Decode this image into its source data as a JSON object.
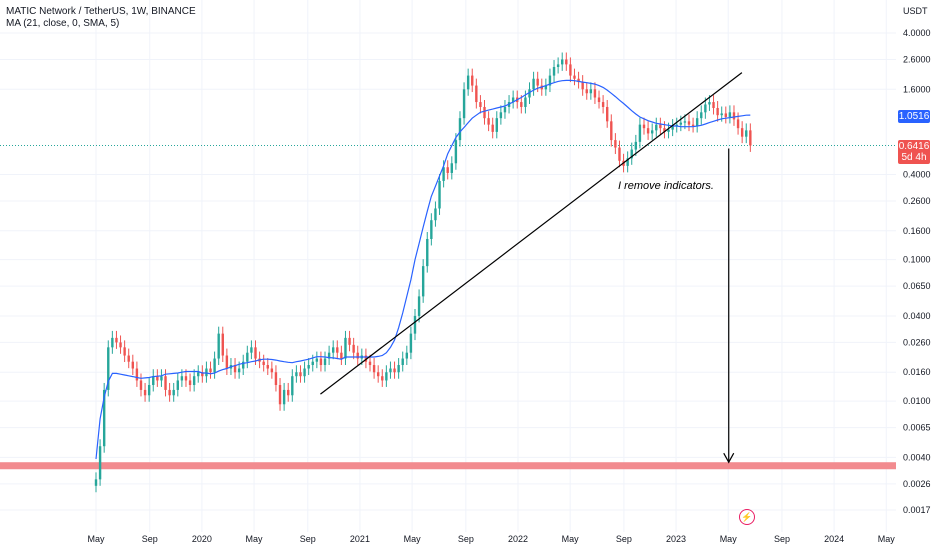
{
  "legend": {
    "title": "MATIC Network / TetherUS, 1W, BINANCE",
    "ma": "MA (21, close, 0, SMA, 5)"
  },
  "price_axis": {
    "unit": "USDT",
    "current_price": "0.6416",
    "countdown": "5d 4h",
    "ma_value": "1.0516"
  },
  "annotation": "I remove indicators.",
  "colors": {
    "up": "#26a69a",
    "down": "#ef5350",
    "ma": "#2962ff",
    "support_zone": "#f28b8f",
    "price_line": "#26a69a",
    "trendline": "#000000",
    "accent": "#e91e63"
  },
  "icons": {
    "replay": "lightning-bolt-icon"
  },
  "chart_data": {
    "type": "candlestick",
    "title": "MATIC Network / TetherUS, 1W, BINANCE",
    "xlabel": "",
    "ylabel": "USDT",
    "log_scale": true,
    "ylim": [
      0.0015,
      5.0
    ],
    "x_ticks": [
      "May",
      "Sep",
      "2020",
      "May",
      "Sep",
      "2021",
      "May",
      "Sep",
      "2022",
      "May",
      "Sep",
      "2023",
      "May",
      "Sep",
      "2024",
      "May"
    ],
    "y_ticks": [
      "4.0000",
      "2.6000",
      "1.6000",
      "1.0516",
      "0.6416",
      "0.4000",
      "0.2600",
      "0.1600",
      "0.1000",
      "0.0650",
      "0.0400",
      "0.0260",
      "0.0160",
      "0.0100",
      "0.0065",
      "0.0040",
      "0.0026",
      "0.0017"
    ],
    "price_line": 0.6416,
    "support_zone": [
      0.0033,
      0.0037
    ],
    "trendline": {
      "from": [
        "2020-10",
        0.0112
      ],
      "to": [
        "2023-06",
        2.1
      ]
    },
    "arrow": {
      "from": [
        "2023-05",
        0.61
      ],
      "to": [
        "2023-05",
        0.0037
      ]
    },
    "series": [
      {
        "name": "MATIC Network / TetherUS",
        "type": "candlestick",
        "close": [
          0.0028,
          0.0048,
          0.012,
          0.024,
          0.028,
          0.026,
          0.024,
          0.021,
          0.019,
          0.017,
          0.014,
          0.012,
          0.011,
          0.013,
          0.015,
          0.014,
          0.015,
          0.012,
          0.011,
          0.012,
          0.014,
          0.015,
          0.014,
          0.013,
          0.015,
          0.016,
          0.015,
          0.017,
          0.016,
          0.02,
          0.03,
          0.021,
          0.017,
          0.018,
          0.016,
          0.017,
          0.019,
          0.022,
          0.024,
          0.02,
          0.019,
          0.018,
          0.017,
          0.016,
          0.013,
          0.0095,
          0.012,
          0.011,
          0.015,
          0.016,
          0.015,
          0.017,
          0.018,
          0.019,
          0.02,
          0.018,
          0.02,
          0.022,
          0.024,
          0.022,
          0.02,
          0.028,
          0.025,
          0.022,
          0.02,
          0.021,
          0.019,
          0.018,
          0.016,
          0.015,
          0.014,
          0.016,
          0.017,
          0.016,
          0.018,
          0.02,
          0.022,
          0.03,
          0.04,
          0.055,
          0.09,
          0.14,
          0.19,
          0.23,
          0.36,
          0.45,
          0.41,
          0.48,
          0.7,
          1.0,
          1.6,
          2.0,
          1.7,
          1.3,
          1.2,
          1.0,
          0.9,
          0.8,
          1.0,
          1.1,
          1.2,
          1.3,
          1.4,
          1.3,
          1.2,
          1.4,
          1.6,
          1.9,
          1.7,
          1.6,
          1.7,
          2.0,
          2.3,
          2.4,
          2.6,
          2.4,
          2.0,
          1.9,
          1.8,
          1.6,
          1.5,
          1.6,
          1.4,
          1.3,
          1.2,
          0.95,
          0.7,
          0.62,
          0.5,
          0.46,
          0.52,
          0.6,
          0.68,
          0.9,
          0.85,
          0.78,
          0.82,
          0.9,
          0.85,
          0.8,
          0.83,
          0.88,
          0.9,
          0.93,
          0.95,
          0.9,
          0.88,
          1.0,
          1.1,
          1.25,
          1.3,
          1.18,
          1.05,
          1.08,
          1.02,
          1.1,
          0.98,
          0.85,
          0.74,
          0.82,
          0.6416
        ],
        "ma": [
          0.0039,
          0.0075,
          0.0107,
          0.0138,
          0.0157,
          0.0157,
          0.0155,
          0.0153,
          0.0151,
          0.0149,
          0.0147,
          0.0145,
          0.0146,
          0.0147,
          0.0149,
          0.015,
          0.0151,
          0.0155,
          0.0156,
          0.0157,
          0.0158,
          0.016,
          0.0162,
          0.0162,
          0.0162,
          0.0162,
          0.0158,
          0.0158,
          0.0156,
          0.0158,
          0.0163,
          0.0167,
          0.017,
          0.0175,
          0.0178,
          0.0182,
          0.0185,
          0.0187,
          0.019,
          0.0192,
          0.0196,
          0.0198,
          0.0198,
          0.0197,
          0.0195,
          0.0192,
          0.019,
          0.0188,
          0.0187,
          0.019,
          0.0192,
          0.0195,
          0.0198,
          0.0202,
          0.0206,
          0.0206,
          0.0205,
          0.0203,
          0.0202,
          0.02,
          0.0198,
          0.0205,
          0.0205,
          0.0205,
          0.0205,
          0.0205,
          0.0205,
          0.0205,
          0.0205,
          0.0207,
          0.021,
          0.022,
          0.024,
          0.027,
          0.033,
          0.042,
          0.055,
          0.072,
          0.1,
          0.13,
          0.17,
          0.22,
          0.28,
          0.33,
          0.39,
          0.46,
          0.56,
          0.64,
          0.73,
          0.8,
          0.86,
          0.93,
          1.0,
          1.05,
          1.1,
          1.12,
          1.14,
          1.16,
          1.18,
          1.2,
          1.22,
          1.26,
          1.3,
          1.35,
          1.4,
          1.46,
          1.52,
          1.58,
          1.63,
          1.66,
          1.7,
          1.74,
          1.78,
          1.82,
          1.84,
          1.85,
          1.85,
          1.84,
          1.82,
          1.8,
          1.78,
          1.76,
          1.74,
          1.7,
          1.65,
          1.58,
          1.5,
          1.42,
          1.34,
          1.27,
          1.2,
          1.13,
          1.07,
          1.02,
          0.99,
          0.96,
          0.94,
          0.92,
          0.91,
          0.9,
          0.89,
          0.88,
          0.88,
          0.87,
          0.87,
          0.87,
          0.87,
          0.88,
          0.89,
          0.91,
          0.93,
          0.95,
          0.97,
          0.99,
          1.0,
          1.01,
          1.02,
          1.03,
          1.04,
          1.05,
          1.0516
        ]
      },
      {
        "name": "MA (21, close, 0, SMA, 5)",
        "type": "line",
        "color": "#2962ff"
      }
    ]
  }
}
